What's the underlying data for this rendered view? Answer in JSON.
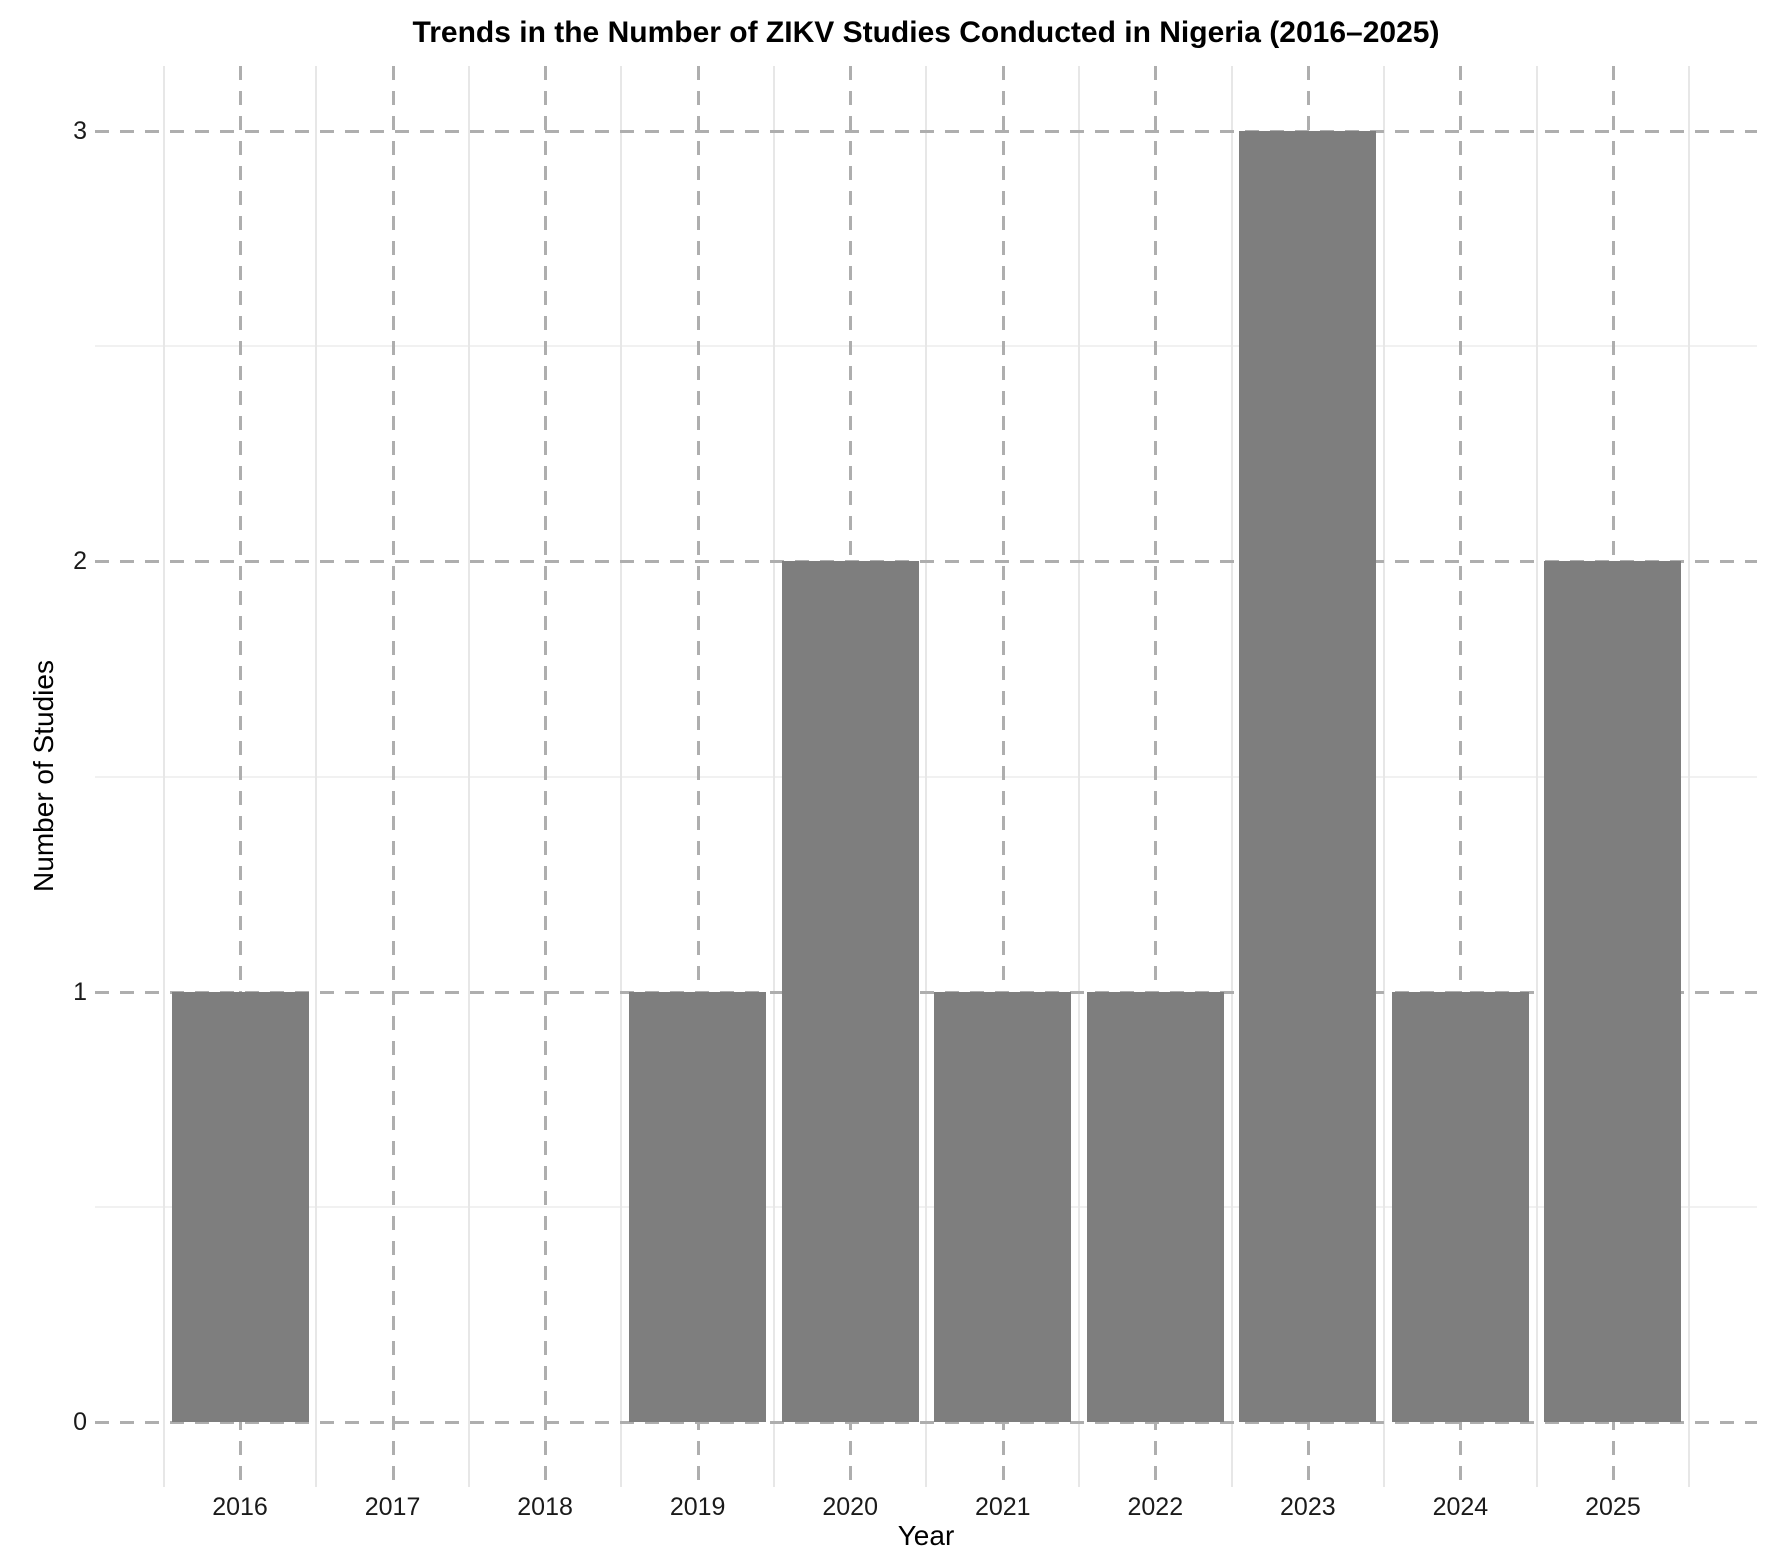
{
  "chart_data": {
    "type": "bar",
    "title": "Trends in the Number of ZIKV Studies Conducted in Nigeria (2016–2025)",
    "xlabel": "Year",
    "ylabel": "Number of Studies",
    "categories": [
      "2016",
      "2017",
      "2018",
      "2019",
      "2020",
      "2021",
      "2022",
      "2023",
      "2024",
      "2025"
    ],
    "values": [
      1,
      0,
      0,
      1,
      2,
      1,
      1,
      3,
      1,
      2
    ],
    "ylim": [
      0,
      3
    ],
    "yticks": [
      0,
      1,
      2,
      3
    ],
    "legend_position": "none",
    "grid": {
      "major_style": "dashed",
      "minor_style": "solid",
      "minor_positions": "between major ticks and category boundaries"
    },
    "colors": {
      "bar": "#7e7e7e",
      "grid_major": "#aeaeae",
      "grid_minor_h": "#f1f1f1",
      "grid_minor_v": "#e7e7e7",
      "background": "#ffffff",
      "text": "#000000"
    }
  }
}
